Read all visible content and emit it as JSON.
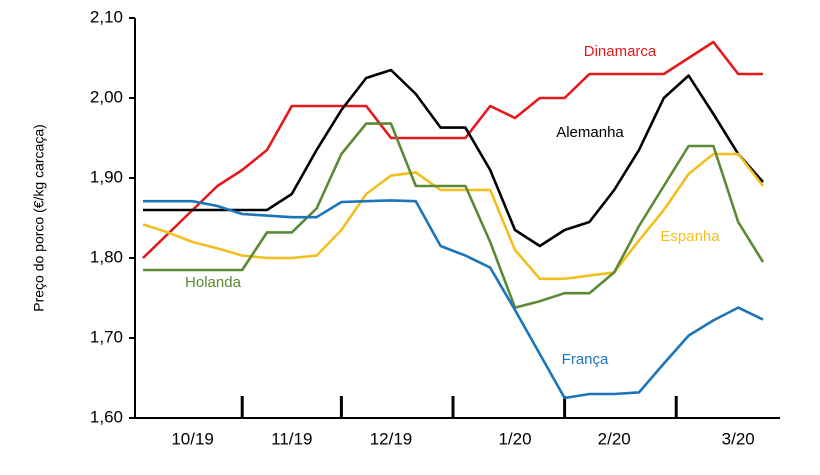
{
  "chart_data": {
    "type": "line",
    "y_label": "Preço do porco (€/kg carcaça)",
    "categories": [
      null,
      null,
      "10/19",
      null,
      null,
      null,
      "11/19",
      null,
      null,
      null,
      "12/19",
      null,
      null,
      null,
      null,
      "1/20",
      null,
      null,
      null,
      "2/20",
      null,
      null,
      null,
      null,
      "3/20",
      null
    ],
    "ylim": [
      1.6,
      2.1
    ],
    "yticks": [
      {
        "value": 1.6,
        "label": "1,60"
      },
      {
        "value": 1.7,
        "label": "1,70"
      },
      {
        "value": 1.8,
        "label": "1,80"
      },
      {
        "value": 1.9,
        "label": "1,90"
      },
      {
        "value": 2.0,
        "label": "2,00"
      },
      {
        "value": 2.1,
        "label": "2,10"
      }
    ],
    "grid": false,
    "series": [
      {
        "name": "Dinamarca",
        "color": "#e3191c",
        "values": [
          1.8,
          1.83,
          1.86,
          1.89,
          1.91,
          1.935,
          1.99,
          1.99,
          1.99,
          1.99,
          1.95,
          1.95,
          1.95,
          1.95,
          1.99,
          1.975,
          2.0,
          2.0,
          2.03,
          2.03,
          2.03,
          2.03,
          2.05,
          2.07,
          2.03,
          2.03
        ]
      },
      {
        "name": "Alemanha",
        "color": "#000000",
        "values": [
          1.86,
          1.86,
          1.86,
          1.86,
          1.86,
          1.86,
          1.88,
          1.935,
          1.985,
          2.025,
          2.035,
          2.005,
          1.963,
          1.963,
          1.91,
          1.835,
          1.815,
          1.835,
          1.845,
          1.885,
          1.935,
          2.0,
          2.028,
          1.98,
          1.93,
          1.895
        ]
      },
      {
        "name": "Espanha",
        "color": "#f2c01e",
        "values": [
          1.842,
          1.832,
          1.82,
          1.812,
          1.803,
          1.8,
          1.8,
          1.803,
          1.835,
          1.88,
          1.903,
          1.907,
          1.885,
          1.885,
          1.885,
          1.81,
          1.774,
          1.774,
          1.778,
          1.782,
          1.822,
          1.86,
          1.905,
          1.93,
          1.93,
          1.89
        ]
      },
      {
        "name": "Holanda",
        "color": "#5a8a34",
        "values": [
          1.785,
          1.785,
          1.785,
          1.785,
          1.785,
          1.832,
          1.832,
          1.862,
          1.93,
          1.968,
          1.968,
          1.89,
          1.89,
          1.89,
          1.82,
          1.738,
          1.746,
          1.756,
          1.756,
          1.782,
          1.84,
          1.89,
          1.94,
          1.94,
          1.845,
          1.795
        ]
      },
      {
        "name": "França",
        "color": "#1a75bb",
        "values": [
          1.871,
          1.871,
          1.871,
          1.865,
          1.855,
          1.853,
          1.851,
          1.851,
          1.87,
          1.871,
          1.872,
          1.871,
          1.815,
          1.803,
          1.788,
          1.735,
          1.68,
          1.625,
          1.63,
          1.63,
          1.632,
          1.668,
          1.703,
          1.722,
          1.738,
          1.723
        ]
      }
    ]
  }
}
